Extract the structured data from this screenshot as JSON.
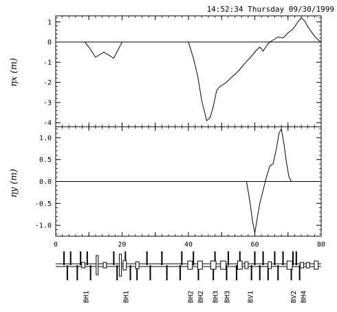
{
  "timestamp": "14:52:34 Thursday 09/30/1999",
  "chart_data": [
    {
      "type": "line",
      "ylabel": "ηx (m)",
      "xlim": [
        0,
        80
      ],
      "ylim": [
        -4.2,
        1.3
      ],
      "yticks": [
        "1",
        "0",
        "-1",
        "-2",
        "-3",
        "-4"
      ],
      "ytick_values": [
        1,
        0,
        -1,
        -2,
        -3,
        -4
      ],
      "reference_line_y": 0,
      "series": [
        {
          "x": [
            0,
            8.8,
            10.2,
            12,
            14.5,
            17.5,
            20,
            40,
            41.5,
            42.8,
            44,
            45.5,
            46.5,
            47.5,
            48.5,
            49.5,
            51,
            53,
            55,
            57,
            58.5,
            59.5,
            60.5,
            61.5,
            62.5,
            63.5,
            64.5,
            65.5,
            67,
            68.5,
            70,
            71.5,
            73,
            74,
            75,
            76,
            77.5,
            78.5,
            79.5,
            80
          ],
          "y": [
            0,
            0,
            -0.3,
            -0.75,
            -0.5,
            -0.8,
            0,
            0,
            -0.8,
            -1.7,
            -2.9,
            -3.9,
            -3.75,
            -3.2,
            -2.4,
            -2.2,
            -2.05,
            -1.75,
            -1.45,
            -1.05,
            -0.8,
            -0.6,
            -0.4,
            -0.25,
            -0.45,
            -0.2,
            0,
            0.1,
            0.25,
            0.2,
            0.45,
            0.65,
            1.0,
            1.2,
            1.05,
            0.75,
            0.4,
            0.2,
            0.05,
            0
          ]
        }
      ]
    },
    {
      "type": "line",
      "ylabel": "ηy (m)",
      "xlim": [
        0,
        80
      ],
      "ylim": [
        -1.25,
        1.25
      ],
      "yticks": [
        "1.0",
        "0.5",
        "0.0",
        "-0.5",
        "-1.0"
      ],
      "ytick_values": [
        1.0,
        0.5,
        0.0,
        -0.5,
        -1.0
      ],
      "xticks": [
        "0",
        "20",
        "40",
        "60",
        "80"
      ],
      "xtick_values": [
        0,
        20,
        40,
        60,
        80
      ],
      "reference_line_y": 0,
      "series": [
        {
          "x": [
            0,
            57.5,
            58.5,
            59.3,
            60,
            60.7,
            61.5,
            62.5,
            63.5,
            64.5,
            65.5,
            66.5,
            67.3,
            68,
            68.8,
            69.5,
            70.3,
            71,
            80
          ],
          "y": [
            0,
            0,
            -0.45,
            -0.9,
            -1.18,
            -0.85,
            -0.5,
            -0.2,
            0.1,
            0.35,
            0.4,
            0.75,
            1.1,
            1.2,
            0.85,
            0.45,
            0.1,
            0,
            0
          ]
        }
      ]
    }
  ],
  "lattice": {
    "xlim": [
      0,
      80
    ],
    "thin_up": [
      2.5,
      4.5,
      7.5,
      9.5,
      17.5,
      21,
      27.5,
      32,
      38,
      41.5,
      48,
      52,
      55.5,
      60,
      62.5,
      66,
      68.5,
      71.5,
      72.5
    ],
    "thin_down": [
      3.5,
      6.5,
      10.5,
      18.5,
      22.5,
      24.5,
      28.5,
      33.5,
      37.5,
      43,
      47.5,
      51.5,
      54.5,
      59,
      61.5,
      64,
      67,
      71,
      73.5
    ],
    "quads": [
      {
        "x": 8.3,
        "w": 1.0,
        "h": 4
      },
      {
        "x": 12.5,
        "w": 0.6,
        "h": 14
      },
      {
        "x": 14.8,
        "w": 1.0,
        "h": 4
      },
      {
        "x": 20.8,
        "w": 1.0,
        "h": 7
      },
      {
        "x": 19.5,
        "w": 0.6,
        "h": 16
      },
      {
        "x": 24.6,
        "w": 1.0,
        "h": 5
      },
      {
        "x": 40.5,
        "w": 1.4,
        "h": 6
      },
      {
        "x": 43.5,
        "w": 1.4,
        "h": 6
      },
      {
        "x": 47.5,
        "w": 1.6,
        "h": 6
      },
      {
        "x": 50.5,
        "w": 1.6,
        "h": 6
      },
      {
        "x": 55.5,
        "w": 1.4,
        "h": 6
      },
      {
        "x": 57.5,
        "w": 1.0,
        "h": 5
      },
      {
        "x": 64.5,
        "w": 1.0,
        "h": 5
      },
      {
        "x": 70.5,
        "w": 1.6,
        "h": 6
      },
      {
        "x": 74.2,
        "w": 1.0,
        "h": 4
      },
      {
        "x": 76.0,
        "w": 1.0,
        "h": 4
      },
      {
        "x": 78.5,
        "w": 1.2,
        "h": 6
      }
    ],
    "labels": [
      {
        "x": 9,
        "text": "BH1"
      },
      {
        "x": 21,
        "text": "BH1"
      },
      {
        "x": 40.5,
        "text": "BH2"
      },
      {
        "x": 43.5,
        "text": "BH2"
      },
      {
        "x": 48,
        "text": "BH3"
      },
      {
        "x": 51.5,
        "text": "BH3"
      },
      {
        "x": 58.5,
        "text": "BV1"
      },
      {
        "x": 71.5,
        "text": "BV2"
      },
      {
        "x": 74.5,
        "text": "BH4"
      }
    ]
  }
}
